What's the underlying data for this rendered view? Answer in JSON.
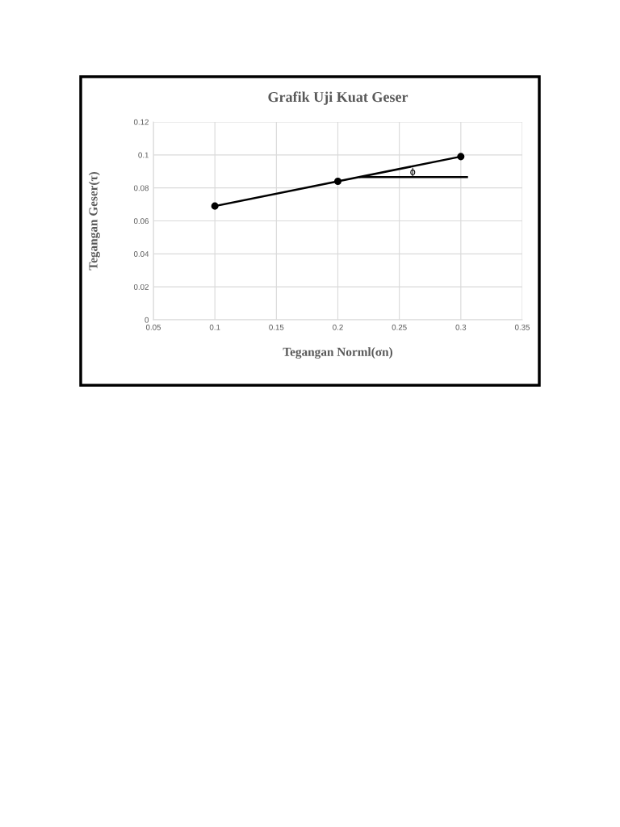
{
  "chart_data": {
    "type": "line",
    "title": "Grafik Uji Kuat Geser",
    "xlabel": "Tegangan Norml(σn)",
    "ylabel": "Tegangan Geser(τ)",
    "x": [
      0.1,
      0.2,
      0.3
    ],
    "series": [
      {
        "color": "#000000",
        "values": [
          0.069,
          0.084,
          0.099
        ],
        "marker": "circle"
      },
      {
        "color": "#000000",
        "x": [
          0.218,
          0.305
        ],
        "values": [
          0.0866,
          0.0866
        ],
        "marker": "none"
      }
    ],
    "annotations": [
      "ϕ"
    ],
    "xlim": [
      0.05,
      0.35
    ],
    "xticks": [
      0.05,
      0.1,
      0.15,
      0.2,
      0.25,
      0.3,
      0.35
    ],
    "ylim": [
      0,
      0.12
    ],
    "yticks": [
      0,
      0.02,
      0.04,
      0.06,
      0.08,
      0.1,
      0.12
    ],
    "grid": true,
    "line_style": "solid"
  }
}
